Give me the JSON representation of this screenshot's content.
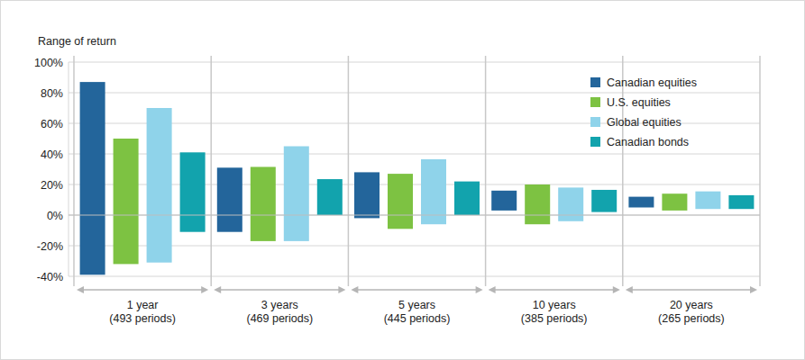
{
  "chart_data": {
    "type": "bar",
    "y_label": "Range of return",
    "categories": [
      "1 year",
      "3 years",
      "5 years",
      "10 years",
      "20 years"
    ],
    "category_notes": [
      "(493 periods)",
      "(469 periods)",
      "(445 periods)",
      "(385 periods)",
      "(265 periods)"
    ],
    "series": [
      {
        "name": "Canadian equities",
        "color": "#23659b",
        "values": [
          87,
          31,
          28,
          16,
          12
        ],
        "lows": [
          -39,
          -11,
          -2,
          3,
          5
        ]
      },
      {
        "name": "U.S. equities",
        "color": "#7dc242",
        "values": [
          50,
          31.5,
          27,
          20,
          14
        ],
        "lows": [
          -32,
          -17,
          -9,
          -6,
          3
        ]
      },
      {
        "name": "Global equities",
        "color": "#8fd3ea",
        "values": [
          70,
          45,
          36.5,
          18,
          15.5
        ],
        "lows": [
          -31,
          -17,
          -6,
          -4,
          4
        ]
      },
      {
        "name": "Canadian bonds",
        "color": "#12a3ad",
        "values": [
          41,
          23.5,
          22,
          16.5,
          13
        ],
        "lows": [
          -11,
          0,
          0,
          2,
          4
        ]
      }
    ],
    "ylim": [
      -40,
      100
    ],
    "yticks": [
      {
        "value": -40,
        "label": "-40%"
      },
      {
        "value": -20,
        "label": "-20%"
      },
      {
        "value": 0,
        "label": "0%"
      },
      {
        "value": 20,
        "label": "20%"
      },
      {
        "value": 40,
        "label": "40%"
      },
      {
        "value": 60,
        "label": "60%"
      },
      {
        "value": 80,
        "label": "80%"
      },
      {
        "value": 100,
        "label": "100%"
      }
    ],
    "grid": true,
    "legend": "top-right"
  }
}
